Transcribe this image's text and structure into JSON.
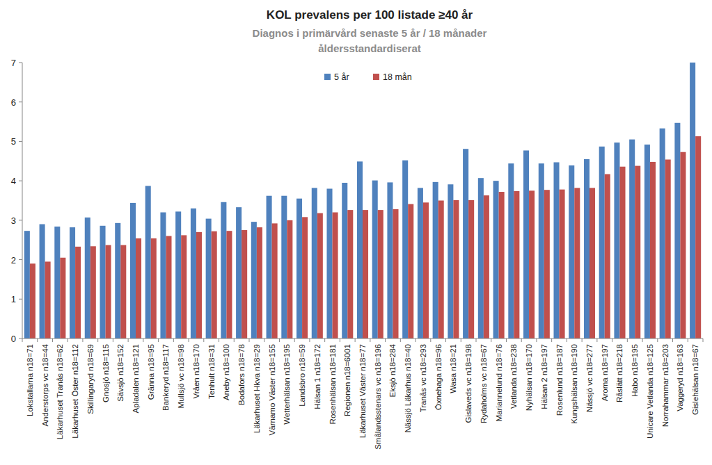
{
  "chart_data": {
    "type": "bar",
    "title": "KOL prevalens per 100 listade ≥40 år",
    "subtitle": [
      "Diagnos i primärvård senaste 5 år / 18 månader",
      "åldersstandardiserat"
    ],
    "categories": [
      "Lokstallarna n18=71",
      "Anderstorps vc n18=44",
      "Läkarhuset Tranås n18=62",
      "Läkarhuset Öster n18=112",
      "Skillingaryd n18=69",
      "Gnosjö n18=115",
      "Sävsjö n18=152",
      "Apladalen n18=121",
      "Gränna n18=95",
      "Bankeryd n18=117",
      "Mullsjö vc n18=98",
      "Vråen n18=170",
      "Tenhult n18=31",
      "Aneby n18=100",
      "Bodafors n18=78",
      "Läkarhuset Hkva n18=29",
      "Värnamo Väster n18=155",
      "Wetterhälsan n18=195",
      "Landsbro n18=59",
      "Hälsan 1 n18=172",
      "Rosenhälsan n18=181",
      "Regionen n18=6001",
      "Läkarhuset Väster n18=77",
      "Smålandsstenars vc n18=196",
      "Eksjö n18=284",
      "Nässjö Läkarhus n18=40",
      "Tranås vc n18=293",
      "Öxnehaga n18=96",
      "Wasa n18=21",
      "Gislaveds vc n18=198",
      "Rydaholms vc n18=67",
      "Mariannelund n18=76",
      "Vetlanda n18=238",
      "Nyhälsan n18=170",
      "Hälsan 2 n18=197",
      "Rosenlund n18=187",
      "Kungshälsan n18=190",
      "Nässjö vc n18=277",
      "Aroma n18=197",
      "Råslätt n18=218",
      "Habo n18=195",
      "Unicare Vetlanda n18=125",
      "Norrahammar n18=203",
      "Vaggeryd n18=163",
      "Gislehälsan n18=67"
    ],
    "series": [
      {
        "name": "5 år",
        "color": "#4f81bd",
        "values": [
          2.73,
          2.9,
          2.84,
          2.82,
          3.07,
          2.86,
          2.93,
          3.44,
          3.87,
          3.2,
          3.22,
          3.3,
          3.04,
          3.46,
          3.33,
          2.96,
          3.62,
          3.62,
          3.55,
          3.82,
          3.8,
          3.95,
          4.49,
          4.01,
          3.96,
          4.52,
          3.82,
          3.97,
          3.91,
          4.81,
          4.07,
          4.0,
          4.44,
          4.77,
          4.44,
          4.47,
          4.39,
          4.55,
          4.87,
          4.97,
          5.05,
          4.92,
          5.33,
          5.47,
          7.0
        ]
      },
      {
        "name": "18 mån",
        "color": "#c0504d",
        "values": [
          1.9,
          1.95,
          2.05,
          2.33,
          2.34,
          2.37,
          2.37,
          2.54,
          2.54,
          2.6,
          2.62,
          2.7,
          2.72,
          2.73,
          2.75,
          2.82,
          2.92,
          3.0,
          3.08,
          3.18,
          3.2,
          3.26,
          3.26,
          3.26,
          3.28,
          3.41,
          3.45,
          3.5,
          3.51,
          3.51,
          3.63,
          3.72,
          3.74,
          3.75,
          3.77,
          3.78,
          3.82,
          3.82,
          4.17,
          4.36,
          4.38,
          4.48,
          4.54,
          4.73,
          5.13
        ]
      }
    ],
    "ylim": [
      0,
      7
    ],
    "yticks": [
      0,
      1,
      2,
      3,
      4,
      5,
      6,
      7
    ],
    "grid": false,
    "legend": "top"
  }
}
